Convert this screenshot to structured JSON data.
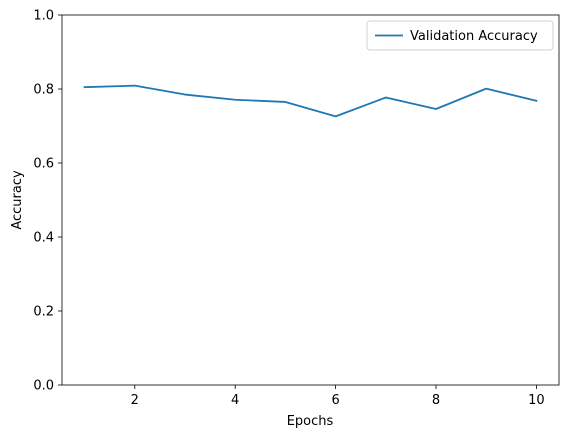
{
  "chart_data": {
    "type": "line",
    "title": "",
    "xlabel": "Epochs",
    "ylabel": "Accuracy",
    "xlim": [
      0.55,
      10.45
    ],
    "ylim": [
      0.0,
      1.0
    ],
    "xticks": [
      2,
      4,
      6,
      8,
      10
    ],
    "yticks": [
      0.0,
      0.2,
      0.4,
      0.6,
      0.8,
      1.0
    ],
    "xtick_labels": [
      "2",
      "4",
      "6",
      "8",
      "10"
    ],
    "ytick_labels": [
      "0.0",
      "0.2",
      "0.4",
      "0.6",
      "0.8",
      "1.0"
    ],
    "grid": false,
    "legend_position": "top-right",
    "series": [
      {
        "name": "Validation Accuracy",
        "color": "#1f77b4",
        "x": [
          1,
          2,
          3,
          4,
          5,
          6,
          7,
          8,
          9,
          10
        ],
        "y": [
          0.805,
          0.809,
          0.785,
          0.771,
          0.765,
          0.726,
          0.777,
          0.746,
          0.801,
          0.768
        ]
      }
    ]
  }
}
